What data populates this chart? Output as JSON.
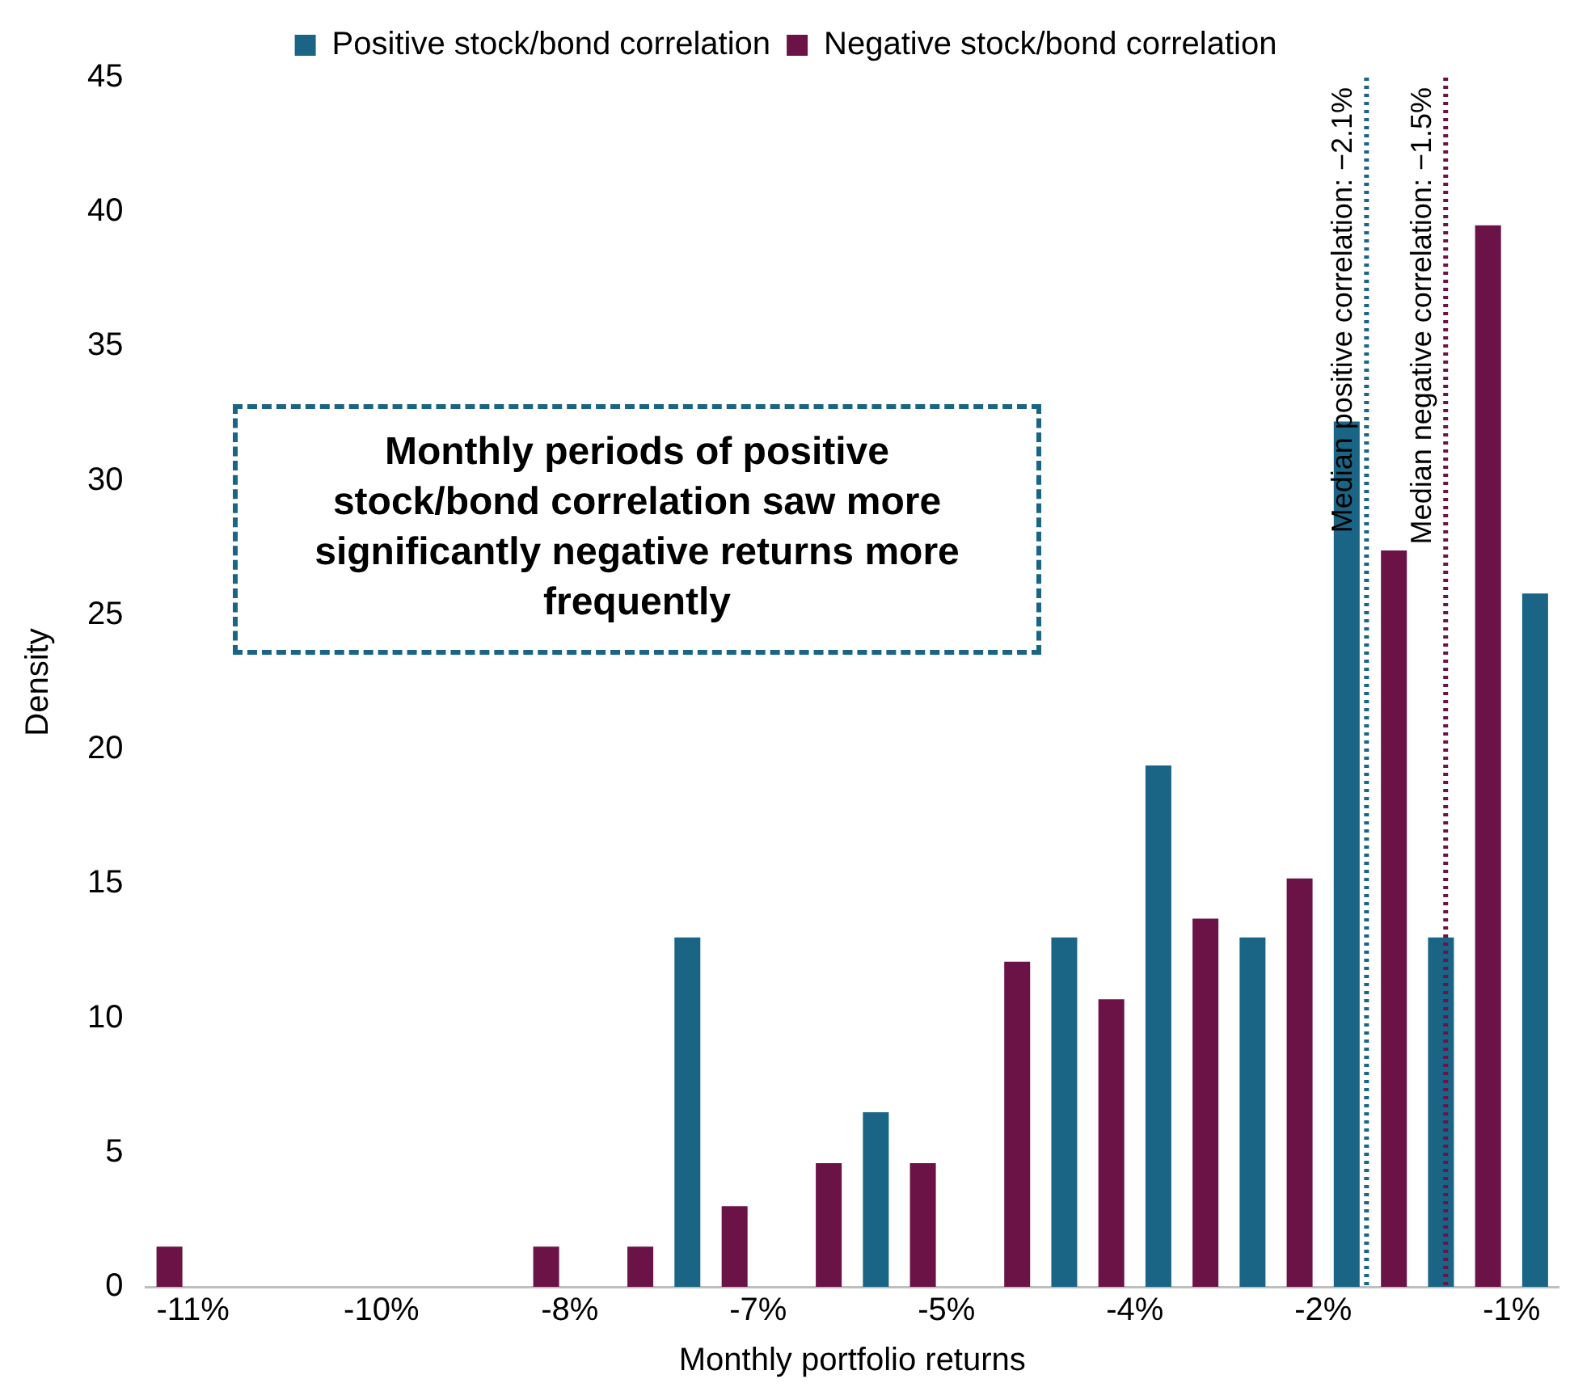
{
  "chart_data": {
    "type": "bar",
    "xlabel": "Monthly portfolio returns",
    "ylabel": "Density",
    "x": [
      -11,
      -10.286,
      -9.571,
      -8.857,
      -8.143,
      -7.429,
      -6.714,
      -6,
      -5.286,
      -4.571,
      -3.857,
      -3.143,
      -2.429,
      -1.714,
      -1
    ],
    "series": [
      {
        "name": "Positive stock/bond correlation",
        "color": "#1a6585",
        "values": [
          0,
          0,
          0,
          0,
          0,
          13,
          0,
          6.5,
          0,
          13,
          19.4,
          13,
          32.2,
          13,
          25.8
        ]
      },
      {
        "name": "Negative stock/bond correlation",
        "color": "#6b1346",
        "values": [
          1.5,
          0,
          0,
          0,
          1.5,
          1.5,
          3,
          4.6,
          4.6,
          12.1,
          10.7,
          13.7,
          15.2,
          27.4,
          39.5
        ]
      }
    ],
    "xlim": [
      -11.357,
      -0.643
    ],
    "xticks": [
      {
        "value": -11,
        "label": "-11%"
      },
      {
        "value": -9.571,
        "label": "-10%"
      },
      {
        "value": -8.143,
        "label": "-8%"
      },
      {
        "value": -6.714,
        "label": "-7%"
      },
      {
        "value": -5.286,
        "label": "-5%"
      },
      {
        "value": -3.857,
        "label": "-4%"
      },
      {
        "value": -2.429,
        "label": "-2%"
      },
      {
        "value": -1,
        "label": "-1%"
      }
    ],
    "ylim": [
      0,
      45
    ],
    "yticks": [
      0,
      5,
      10,
      15,
      20,
      25,
      30,
      35,
      40,
      45
    ],
    "ref_lines": [
      {
        "axis": "x",
        "value": -2.1,
        "label": "Median positive correlation: −2.1%",
        "color": "#1a6585",
        "line_style": "dotted"
      },
      {
        "axis": "x",
        "value": -1.5,
        "label": "Median negative correlation: −1.5%",
        "color": "#6b1346",
        "line_style": "dotted"
      }
    ],
    "annotations": [
      "Monthly periods of positive stock/bond correlation saw more significantly negative returns more frequently"
    ],
    "legend": "top"
  }
}
